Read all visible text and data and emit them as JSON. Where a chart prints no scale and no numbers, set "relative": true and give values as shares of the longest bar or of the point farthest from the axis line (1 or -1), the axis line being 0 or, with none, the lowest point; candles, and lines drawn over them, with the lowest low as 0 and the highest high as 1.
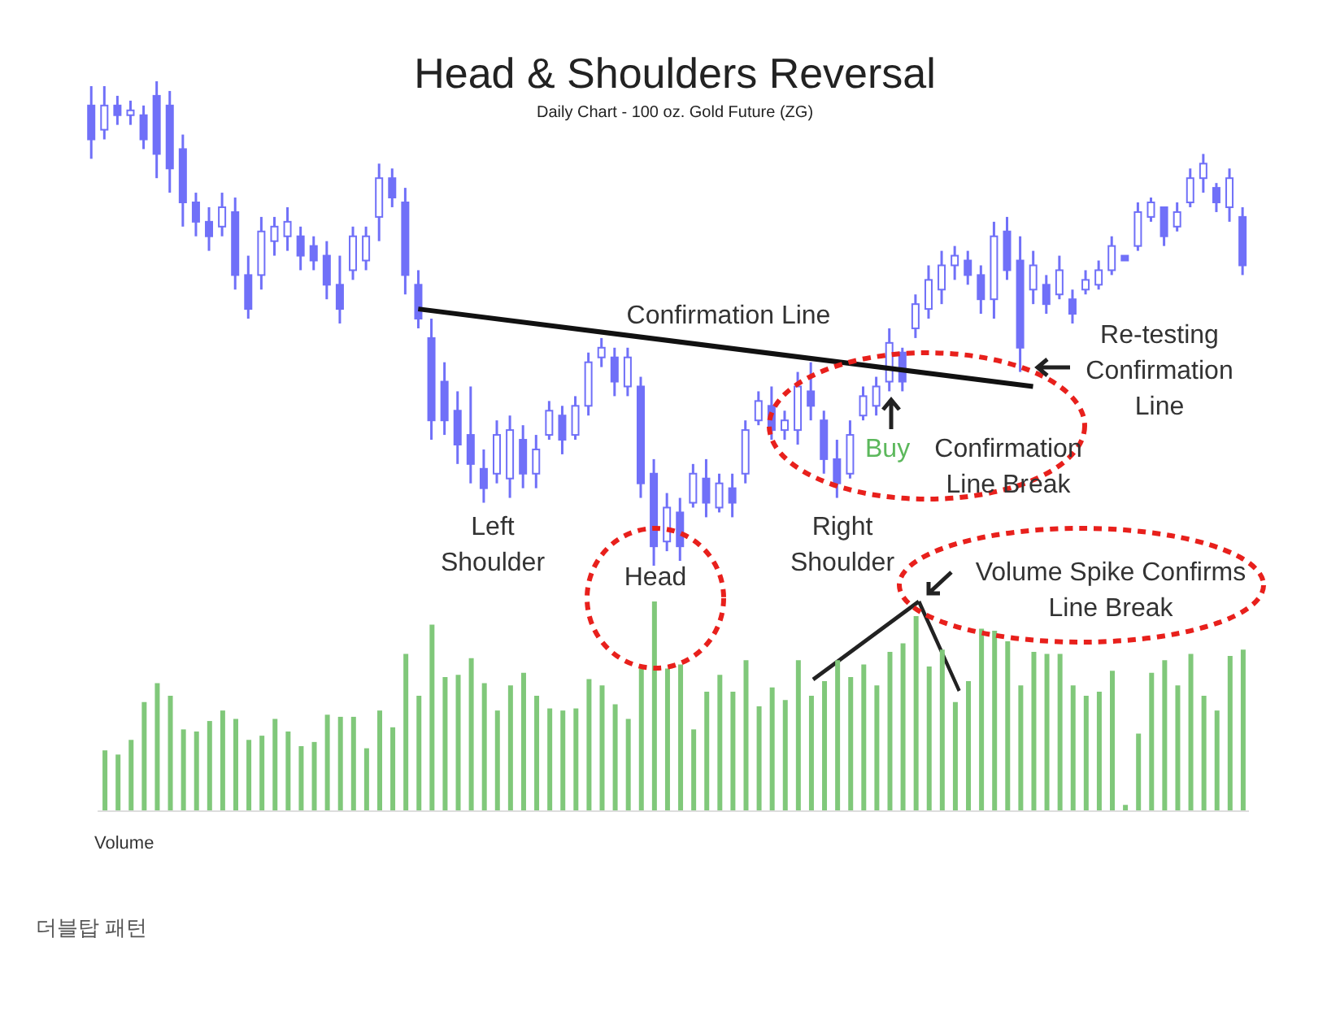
{
  "chart_data": [
    {
      "type": "candlestick",
      "title": "Head & Shoulders Reversal",
      "subtitle": "Daily Chart - 100 oz. Gold Future (ZG)",
      "relative": true,
      "color": "#7070f8",
      "categories": [
        null,
        null,
        null,
        null,
        null,
        null,
        null,
        null,
        null,
        null,
        null,
        null,
        null,
        null,
        null,
        null,
        null,
        null,
        null,
        null,
        null,
        null,
        null,
        null,
        null,
        null,
        null,
        null,
        null,
        null,
        null,
        null,
        null,
        null,
        null,
        null,
        null,
        null,
        null,
        null,
        null,
        null,
        null,
        null,
        null,
        null,
        null,
        null,
        null,
        null,
        null,
        null,
        null,
        null,
        null,
        null,
        null,
        null,
        null,
        null,
        null,
        null,
        null,
        null,
        null,
        null,
        null,
        null,
        null,
        null,
        null,
        null,
        null,
        null,
        null,
        null,
        null,
        null,
        null,
        null,
        null,
        null,
        null,
        null,
        null,
        null,
        null,
        null,
        null
      ],
      "ohlc": [
        [
          0.95,
          0.99,
          0.84,
          0.88
        ],
        [
          0.9,
          0.99,
          0.88,
          0.95
        ],
        [
          0.95,
          0.97,
          0.91,
          0.93
        ],
        [
          0.93,
          0.96,
          0.91,
          0.94
        ],
        [
          0.93,
          0.95,
          0.86,
          0.88
        ],
        [
          0.97,
          1,
          0.8,
          0.85
        ],
        [
          0.95,
          0.98,
          0.77,
          0.82
        ],
        [
          0.86,
          0.89,
          0.7,
          0.75
        ],
        [
          0.75,
          0.77,
          0.68,
          0.71
        ],
        [
          0.71,
          0.74,
          0.65,
          0.68
        ],
        [
          0.7,
          0.77,
          0.68,
          0.74
        ],
        [
          0.73,
          0.76,
          0.57,
          0.6
        ],
        [
          0.6,
          0.64,
          0.51,
          0.53
        ],
        [
          0.6,
          0.72,
          0.57,
          0.69
        ],
        [
          0.67,
          0.72,
          0.64,
          0.7
        ],
        [
          0.68,
          0.74,
          0.65,
          0.71
        ],
        [
          0.68,
          0.7,
          0.61,
          0.64
        ],
        [
          0.66,
          0.68,
          0.61,
          0.63
        ],
        [
          0.64,
          0.67,
          0.55,
          0.58
        ],
        [
          0.58,
          0.64,
          0.5,
          0.53
        ],
        [
          0.61,
          0.7,
          0.59,
          0.68
        ],
        [
          0.63,
          0.7,
          0.61,
          0.68
        ],
        [
          0.72,
          0.83,
          0.67,
          0.8
        ],
        [
          0.8,
          0.82,
          0.74,
          0.76
        ],
        [
          0.75,
          0.78,
          0.56,
          0.6
        ],
        [
          0.58,
          0.61,
          0.49,
          0.51
        ],
        [
          0.47,
          0.51,
          0.26,
          0.3
        ],
        [
          0.38,
          0.42,
          0.27,
          0.3
        ],
        [
          0.32,
          0.36,
          0.21,
          0.25
        ],
        [
          0.27,
          0.37,
          0.17,
          0.21
        ],
        [
          0.2,
          0.24,
          0.13,
          0.16
        ],
        [
          0.19,
          0.3,
          0.17,
          0.27
        ],
        [
          0.18,
          0.31,
          0.14,
          0.28
        ],
        [
          0.26,
          0.29,
          0.16,
          0.19
        ],
        [
          0.19,
          0.27,
          0.16,
          0.24
        ],
        [
          0.27,
          0.34,
          0.26,
          0.32
        ],
        [
          0.31,
          0.33,
          0.23,
          0.26
        ],
        [
          0.27,
          0.35,
          0.26,
          0.33
        ],
        [
          0.33,
          0.44,
          0.31,
          0.42
        ],
        [
          0.43,
          0.47,
          0.41,
          0.45
        ],
        [
          0.43,
          0.45,
          0.35,
          0.38
        ],
        [
          0.37,
          0.45,
          0.35,
          0.43
        ],
        [
          0.37,
          0.39,
          0.14,
          0.17
        ],
        [
          0.19,
          0.22,
          0,
          0.04
        ],
        [
          0.05,
          0.15,
          0.03,
          0.12
        ],
        [
          0.11,
          0.14,
          0.01,
          0.04
        ],
        [
          0.13,
          0.21,
          0.12,
          0.19
        ],
        [
          0.18,
          0.22,
          0.1,
          0.13
        ],
        [
          0.12,
          0.19,
          0.11,
          0.17
        ],
        [
          0.16,
          0.19,
          0.1,
          0.13
        ],
        [
          0.19,
          0.3,
          0.17,
          0.28
        ],
        [
          0.3,
          0.36,
          0.29,
          0.34
        ],
        [
          0.33,
          0.37,
          0.26,
          0.28
        ],
        [
          0.28,
          0.32,
          0.26,
          0.3
        ],
        [
          0.28,
          0.4,
          0.25,
          0.37
        ],
        [
          0.36,
          0.42,
          0.3,
          0.33
        ],
        [
          0.3,
          0.32,
          0.19,
          0.22
        ],
        [
          0.22,
          0.26,
          0.14,
          0.17
        ],
        [
          0.19,
          0.3,
          0.18,
          0.27
        ],
        [
          0.31,
          0.37,
          0.3,
          0.35
        ],
        [
          0.33,
          0.39,
          0.31,
          0.37
        ],
        [
          0.38,
          0.49,
          0.36,
          0.46
        ],
        [
          0.44,
          0.45,
          0.36,
          0.38
        ],
        [
          0.49,
          0.56,
          0.47,
          0.54
        ],
        [
          0.53,
          0.62,
          0.51,
          0.59
        ],
        [
          0.57,
          0.65,
          0.54,
          0.62
        ],
        [
          0.62,
          0.66,
          0.59,
          0.64
        ],
        [
          0.63,
          0.65,
          0.58,
          0.6
        ],
        [
          0.6,
          0.62,
          0.52,
          0.55
        ],
        [
          0.55,
          0.71,
          0.51,
          0.68
        ],
        [
          0.69,
          0.72,
          0.59,
          0.61
        ],
        [
          0.63,
          0.68,
          0.4,
          0.45
        ],
        [
          0.57,
          0.65,
          0.54,
          0.62
        ],
        [
          0.58,
          0.6,
          0.52,
          0.54
        ],
        [
          0.56,
          0.64,
          0.55,
          0.61
        ],
        [
          0.55,
          0.57,
          0.5,
          0.52
        ],
        [
          0.57,
          0.61,
          0.56,
          0.59
        ],
        [
          0.58,
          0.63,
          0.57,
          0.61
        ],
        [
          0.61,
          0.68,
          0.6,
          0.66
        ],
        [
          0.64,
          0.64,
          0.63,
          0.63
        ],
        [
          0.66,
          0.75,
          0.65,
          0.73
        ],
        [
          0.72,
          0.76,
          0.71,
          0.75
        ],
        [
          0.74,
          0.74,
          0.66,
          0.68
        ],
        [
          0.7,
          0.75,
          0.69,
          0.73
        ],
        [
          0.75,
          0.82,
          0.74,
          0.8
        ],
        [
          0.8,
          0.85,
          0.77,
          0.83
        ],
        [
          0.78,
          0.79,
          0.73,
          0.75
        ],
        [
          0.74,
          0.82,
          0.71,
          0.8
        ],
        [
          0.72,
          0.74,
          0.6,
          0.62
        ]
      ],
      "series": [
        {
          "type": "line",
          "color": "#111111",
          "values": [
            null,
            null,
            null,
            null,
            null,
            null,
            null,
            null,
            null,
            null,
            null,
            null,
            null,
            null,
            null,
            null,
            null,
            null,
            null,
            null,
            null,
            null,
            null,
            null,
            null,
            0.53,
            null,
            null,
            null,
            null,
            null,
            null,
            null,
            null,
            null,
            null,
            null,
            null,
            null,
            null,
            null,
            null,
            null,
            null,
            null,
            null,
            null,
            null,
            null,
            null,
            null,
            null,
            null,
            null,
            null,
            null,
            null,
            null,
            null,
            null,
            null,
            null,
            null,
            null,
            null,
            null,
            null,
            null,
            null,
            null,
            null,
            null,
            0.37,
            null,
            null,
            null,
            null,
            null,
            null,
            null,
            null,
            null,
            null,
            null,
            null,
            null,
            null,
            null,
            null
          ]
        }
      ],
      "annotations": [
        "Confirmation Line",
        "Left Shoulder",
        "Head",
        "Right Shoulder",
        "Buy",
        "Confirmation Line Break",
        "Re-testing Confirmation Line",
        "Volume Spike Confirms Line Break"
      ]
    },
    {
      "type": "bar",
      "relative": true,
      "color": "#80c87a",
      "categories": [
        null,
        null,
        null,
        null,
        null,
        null,
        null,
        null,
        null,
        null,
        null,
        null,
        null,
        null,
        null,
        null,
        null,
        null,
        null,
        null,
        null,
        null,
        null,
        null,
        null,
        null,
        null,
        null,
        null,
        null,
        null,
        null,
        null,
        null,
        null,
        null,
        null,
        null,
        null,
        null,
        null,
        null,
        null,
        null,
        null,
        null,
        null,
        null,
        null,
        null,
        null,
        null,
        null,
        null,
        null,
        null,
        null,
        null,
        null,
        null,
        null,
        null,
        null,
        null,
        null,
        null,
        null,
        null,
        null,
        null,
        null,
        null,
        null,
        null,
        null,
        null,
        null,
        null,
        null,
        null,
        null,
        null,
        null,
        null,
        null,
        null,
        null,
        null
      ],
      "values": [
        0.29,
        0.27,
        0.34,
        0.52,
        0.61,
        0.55,
        0.39,
        0.38,
        0.43,
        0.48,
        0.44,
        0.34,
        0.36,
        0.44,
        0.38,
        0.31,
        0.33,
        0.46,
        0.45,
        0.45,
        0.3,
        0.48,
        0.4,
        0.75,
        0.55,
        0.89,
        0.64,
        0.65,
        0.73,
        0.61,
        0.48,
        0.6,
        0.66,
        0.55,
        0.49,
        0.48,
        0.49,
        0.63,
        0.6,
        0.51,
        0.44,
        0.68,
        1,
        0.68,
        0.7,
        0.39,
        0.57,
        0.65,
        0.57,
        0.72,
        0.5,
        0.59,
        0.53,
        0.72,
        0.55,
        0.62,
        0.72,
        0.64,
        0.7,
        0.6,
        0.76,
        0.8,
        0.93,
        0.69,
        0.77,
        0.52,
        0.62,
        0.87,
        0.86,
        0.81,
        0.6,
        0.76,
        0.75,
        0.75,
        0.6,
        0.55,
        0.57,
        0.67,
        0.03,
        0.37,
        0.66,
        0.72,
        0.6,
        0.75,
        0.55,
        0.48,
        0.74,
        0.77
      ],
      "annotations": [
        "Volume",
        "더블탑 패턴"
      ]
    }
  ]
}
